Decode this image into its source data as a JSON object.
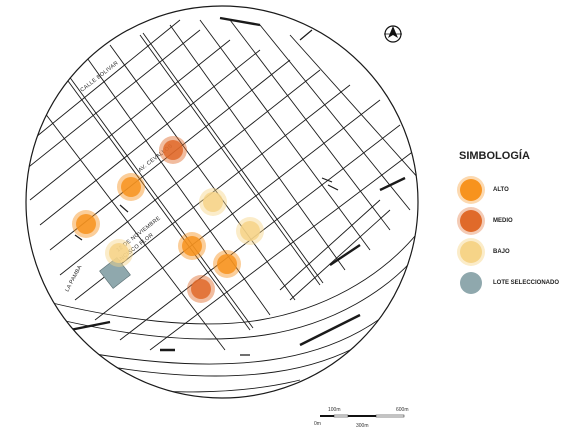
{
  "legend": {
    "title": "SIMBOLOGÍA",
    "items": [
      {
        "label": "ALTO",
        "color": "#F7931E"
      },
      {
        "label": "MEDIO",
        "color": "#E06A2A"
      },
      {
        "label": "BAJO",
        "color": "#F6D488"
      },
      {
        "label": "LOTE SELECCIONADO",
        "color": "#8FA8AD"
      }
    ]
  },
  "streets": {
    "calle_bolivar": "CALLE BOLIVAR",
    "av_cevallos": "AV. CEVALLOS",
    "street_3": "FRANCISCO FLOR",
    "street_4": "12 DE NOVIEMBRE",
    "street_5": "LA PAMBA"
  },
  "scale": {
    "labels": [
      "0m",
      "100m",
      "300m",
      "600m"
    ]
  },
  "icons": {
    "north_arrow": "north-arrow-icon"
  },
  "markers": [
    {
      "level": "MEDIO"
    },
    {
      "level": "ALTO"
    },
    {
      "level": "ALTO"
    },
    {
      "level": "BAJO"
    },
    {
      "level": "BAJO"
    },
    {
      "level": "BAJO"
    },
    {
      "level": "ALTO"
    },
    {
      "level": "ALTO"
    },
    {
      "level": "MEDIO"
    }
  ],
  "lote": {
    "label": "LOTE SELECCIONADO"
  }
}
